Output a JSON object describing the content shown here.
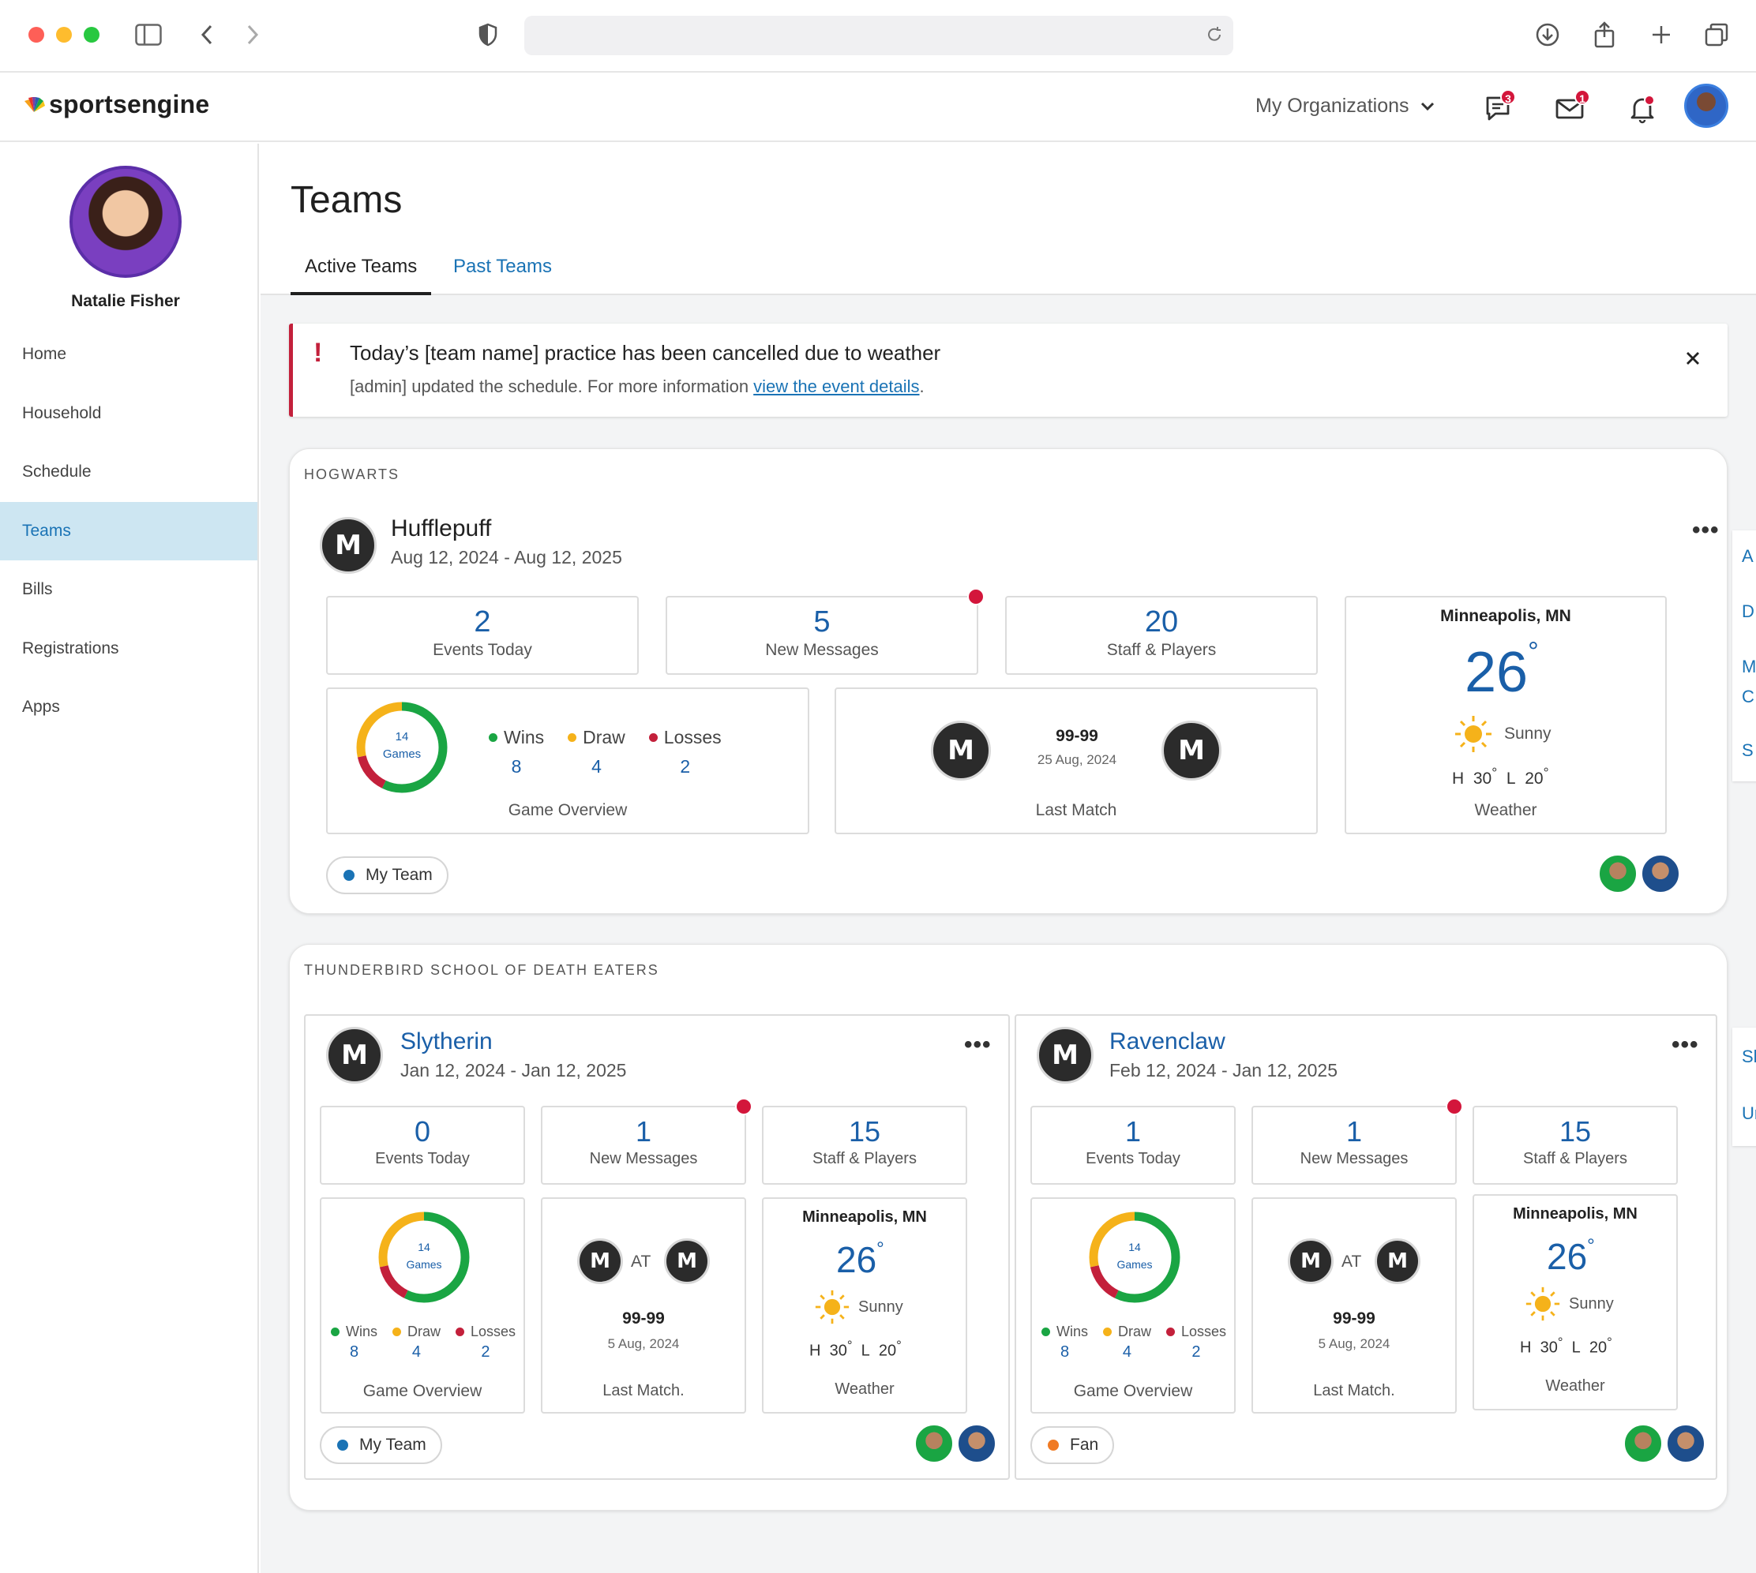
{
  "app": {
    "brand": "sportsengine",
    "orgs_label": "My Organizations",
    "chat_badge": "3",
    "mail_badge": "1"
  },
  "profile": {
    "name": "Natalie Fisher"
  },
  "nav": [
    {
      "label": "Home"
    },
    {
      "label": "Household"
    },
    {
      "label": "Schedule"
    },
    {
      "label": "Teams"
    },
    {
      "label": "Bills"
    },
    {
      "label": "Registrations"
    },
    {
      "label": "Apps"
    }
  ],
  "page": {
    "title": "Teams",
    "tabs": [
      {
        "label": "Active Teams"
      },
      {
        "label": "Past Teams"
      }
    ]
  },
  "alert": {
    "title": "Today’s [team name] practice has been cancelled due to weather",
    "message_prefix": "[admin] updated the schedule. For more information ",
    "link_text": "view the event details",
    "message_suffix": "."
  },
  "hogwarts": {
    "org": "HOGWARTS",
    "team": {
      "name": "Hufflepuff",
      "dates": "Aug 12, 2024 - Aug 12, 2025",
      "events_today": "2",
      "events_label": "Events Today",
      "messages": "5",
      "messages_label": "New Messages",
      "staff": "20",
      "staff_label": "Staff & Players",
      "games": "14",
      "games_label": "Games",
      "wins_label": "Wins",
      "wins": "8",
      "draw_label": "Draw",
      "draw": "4",
      "losses_label": "Losses",
      "losses": "2",
      "overview_label": "Game Overview",
      "score": "99-99",
      "match_date": "25 Aug, 2024",
      "match_label": "Last Match",
      "city": "Minneapolis, MN",
      "temp": "26",
      "condition": "Sunny",
      "high_label": "H",
      "high": "30",
      "low_label": "L",
      "low": "20",
      "weather_label": "Weather",
      "role": "My Team"
    }
  },
  "thunderbird": {
    "org": "THUNDERBIRD SCHOOL OF DEATH EATERS",
    "teams": [
      {
        "name": "Slytherin",
        "dates": "Jan 12, 2024 - Jan 12, 2025",
        "events_today": "0",
        "events_label": "Events Today",
        "messages": "1",
        "messages_label": "New Messages",
        "staff": "15",
        "staff_label": "Staff & Players",
        "games": "14",
        "games_label": "Games",
        "wins_label": "Wins",
        "wins": "8",
        "draw_label": "Draw",
        "draw": "4",
        "losses_label": "Losses",
        "losses": "2",
        "overview_label": "Game Overview",
        "at_label": "AT",
        "score": "99-99",
        "match_date": "5 Aug, 2024",
        "match_label": "Last Match.",
        "city": "Minneapolis, MN",
        "temp": "26",
        "condition": "Sunny",
        "high_label": "H",
        "high": "30",
        "low_label": "L",
        "low": "20",
        "weather_label": "Weather",
        "role": "My Team"
      },
      {
        "name": "Ravenclaw",
        "dates": "Feb 12, 2024 - Jan 12, 2025",
        "events_today": "1",
        "events_label": "Events Today",
        "messages": "1",
        "messages_label": "New Messages",
        "staff": "15",
        "staff_label": "Staff & Players",
        "games": "14",
        "games_label": "Games",
        "wins_label": "Wins",
        "wins": "8",
        "draw_label": "Draw",
        "draw": "4",
        "losses_label": "Losses",
        "losses": "2",
        "overview_label": "Game Overview",
        "at_label": "AT",
        "score": "99-99",
        "match_date": "5 Aug, 2024",
        "match_label": "Last Match.",
        "city": "Minneapolis, MN",
        "temp": "26",
        "condition": "Sunny",
        "high_label": "H",
        "high": "30",
        "low_label": "L",
        "low": "20",
        "weather_label": "Weather",
        "role": "Fan"
      }
    ]
  },
  "side_peek": [
    "A",
    "D",
    "M",
    "C",
    "S",
    "Sh",
    "Ur"
  ],
  "colors": {
    "accent": "#1a73b5",
    "wins": "#1aa543",
    "draw": "#f5b21a",
    "losses": "#c3203b",
    "my_team": "#1a73b5",
    "fan": "#f07a24"
  }
}
